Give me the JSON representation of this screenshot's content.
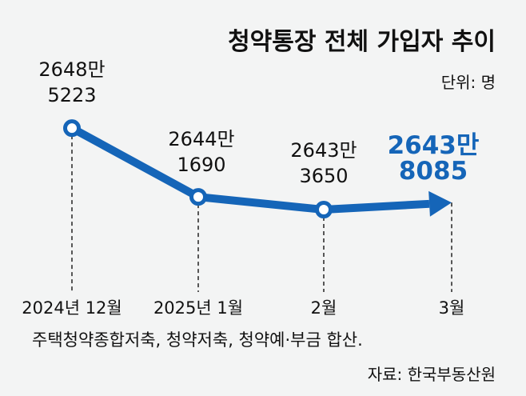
{
  "chart_data": {
    "type": "line",
    "title": "청약통장 전체 가입자 추이",
    "unit_label": "단위: 명",
    "categories": [
      "2024년 12월",
      "2025년 1월",
      "2월",
      "3월"
    ],
    "values": [
      26485223,
      26441690,
      26433650,
      26438085
    ],
    "data_labels": [
      [
        "2648만",
        "5223"
      ],
      [
        "2644만",
        "1690"
      ],
      [
        "2643만",
        "3650"
      ],
      [
        "2643만",
        "8085"
      ]
    ],
    "ylim": [
      26420000,
      26500000
    ],
    "grid": false,
    "last_point_style": "arrow",
    "footnote": "주택청약종합저축, 청약저축, 청약예·부금 합산.",
    "source": "자료: 한국부동산원",
    "colors": {
      "line": "#1565b8",
      "text": "#111111",
      "highlight": "#1565b8",
      "background": "#f3f4f4"
    }
  }
}
